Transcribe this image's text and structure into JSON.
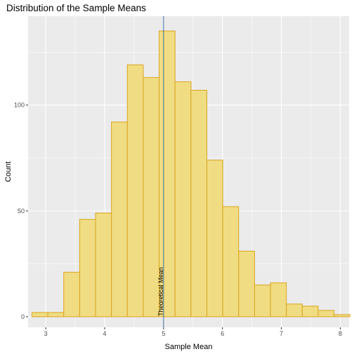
{
  "chart_data": {
    "type": "bar",
    "title": "Distribution of the Sample Means",
    "xlabel": "Sample Mean",
    "ylabel": "Count",
    "xlim": [
      2.7,
      8.15
    ],
    "ylim": [
      -5,
      142
    ],
    "x_ticks": [
      3,
      4,
      5,
      6,
      7,
      8
    ],
    "y_ticks": [
      0,
      50,
      100
    ],
    "grid": true,
    "bin_width": 0.27,
    "bins": [
      {
        "center": 2.9,
        "count": 2
      },
      {
        "center": 3.17,
        "count": 2
      },
      {
        "center": 3.44,
        "count": 21
      },
      {
        "center": 3.71,
        "count": 46
      },
      {
        "center": 3.98,
        "count": 49
      },
      {
        "center": 4.25,
        "count": 92
      },
      {
        "center": 4.52,
        "count": 119
      },
      {
        "center": 4.79,
        "count": 113
      },
      {
        "center": 5.06,
        "count": 135
      },
      {
        "center": 5.33,
        "count": 111
      },
      {
        "center": 5.6,
        "count": 107
      },
      {
        "center": 5.87,
        "count": 74
      },
      {
        "center": 6.14,
        "count": 52
      },
      {
        "center": 6.41,
        "count": 31
      },
      {
        "center": 6.68,
        "count": 15
      },
      {
        "center": 6.95,
        "count": 16
      },
      {
        "center": 7.22,
        "count": 6
      },
      {
        "center": 7.49,
        "count": 5
      },
      {
        "center": 7.76,
        "count": 3
      },
      {
        "center": 8.03,
        "count": 1
      }
    ],
    "vline": {
      "x": 5,
      "label": "Theoretical Mean",
      "color": "#3c6e9e"
    },
    "colors": {
      "fill": "#f0dc82",
      "stroke": "#daa520",
      "panel": "#ebebeb",
      "grid": "#ffffff"
    }
  }
}
